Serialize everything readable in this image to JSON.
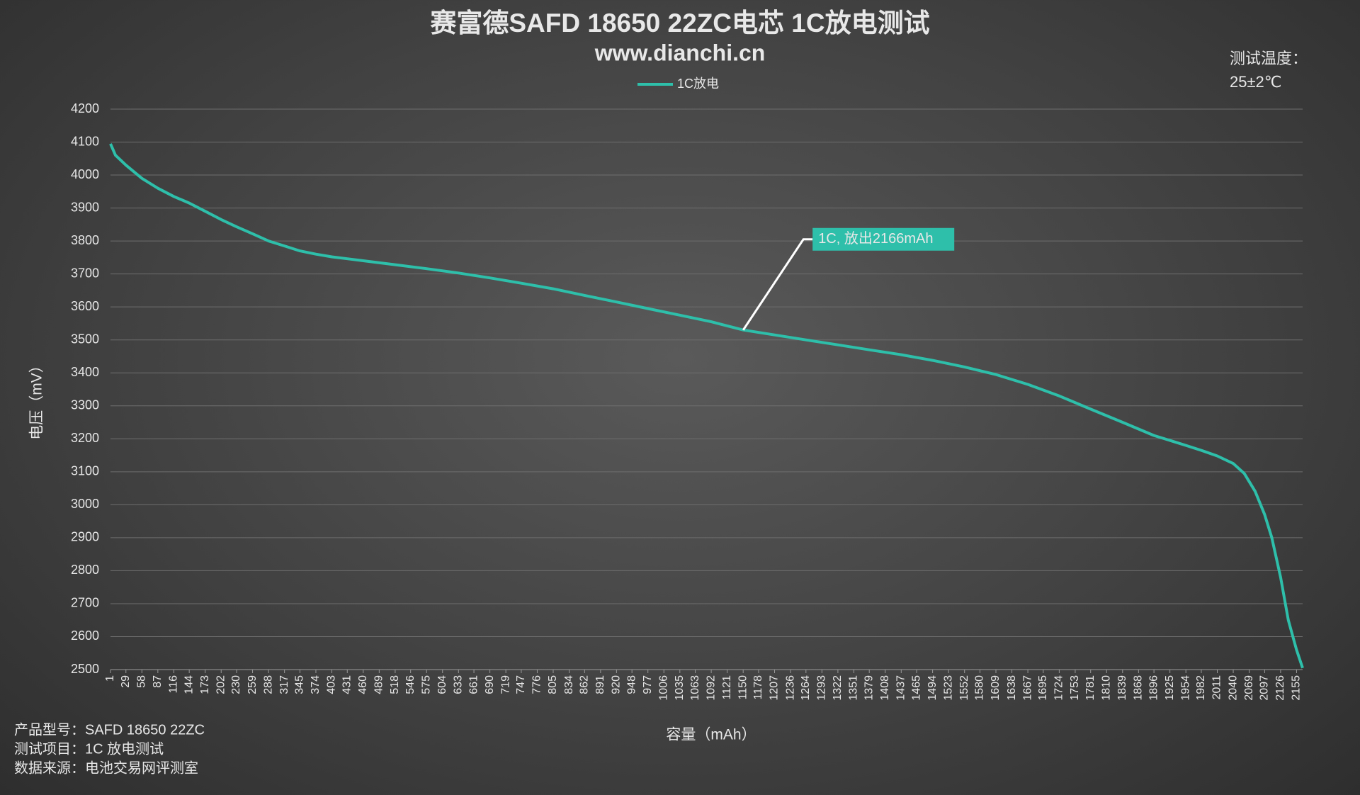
{
  "chart_data": {
    "type": "line",
    "title": "赛富德SAFD 18650 22ZC电芯 1C放电测试",
    "subtitle": "www.dianchi.cn",
    "x_label": "容量（mAh）",
    "y_label": "电压（mV）",
    "temperature_label": "测试温度：",
    "temperature_value": "25±2℃",
    "annotation": "1C, 放出2166mAh",
    "annotation_x": 1150,
    "footer": [
      "产品型号：SAFD 18650 22ZC",
      "测试项目：1C 放电测试",
      "数据来源：电池交易网评测室"
    ],
    "grid": true,
    "legend": "top",
    "x": [
      1,
      10,
      29,
      58,
      87,
      116,
      144,
      173,
      202,
      230,
      259,
      288,
      317,
      345,
      374,
      403,
      431,
      460,
      518,
      575,
      633,
      690,
      747,
      805,
      862,
      920,
      977,
      1035,
      1092,
      1150,
      1207,
      1264,
      1322,
      1379,
      1437,
      1494,
      1552,
      1609,
      1667,
      1724,
      1781,
      1839,
      1896,
      1954,
      1982,
      2011,
      2040,
      2060,
      2080,
      2097,
      2110,
      2126,
      2140,
      2155,
      2166
    ],
    "series": [
      {
        "name": "1C放电",
        "color": "#2ebfaa",
        "values": [
          4095,
          4060,
          4030,
          3990,
          3960,
          3935,
          3915,
          3890,
          3865,
          3843,
          3822,
          3800,
          3785,
          3770,
          3760,
          3752,
          3746,
          3740,
          3728,
          3716,
          3703,
          3688,
          3672,
          3655,
          3635,
          3615,
          3595,
          3575,
          3555,
          3530,
          3515,
          3500,
          3485,
          3470,
          3455,
          3438,
          3418,
          3395,
          3365,
          3330,
          3290,
          3250,
          3210,
          3180,
          3165,
          3148,
          3125,
          3095,
          3040,
          2970,
          2900,
          2780,
          2650,
          2560,
          2505
        ]
      }
    ],
    "xlim": [
      1,
      2166
    ],
    "xticks": [
      1,
      29,
      58,
      87,
      116,
      144,
      173,
      202,
      230,
      259,
      288,
      317,
      345,
      374,
      403,
      431,
      460,
      489,
      518,
      546,
      575,
      604,
      633,
      661,
      690,
      719,
      747,
      776,
      805,
      834,
      862,
      891,
      920,
      948,
      977,
      1006,
      1035,
      1063,
      1092,
      1121,
      1150,
      1178,
      1207,
      1236,
      1264,
      1293,
      1322,
      1351,
      1379,
      1408,
      1437,
      1465,
      1494,
      1523,
      1552,
      1580,
      1609,
      1638,
      1667,
      1695,
      1724,
      1753,
      1781,
      1810,
      1839,
      1868,
      1896,
      1925,
      1954,
      1982,
      2011,
      2040,
      2069,
      2097,
      2126,
      2155
    ],
    "ylim": [
      2500,
      4200
    ],
    "yticks": [
      2500,
      2600,
      2700,
      2800,
      2900,
      3000,
      3100,
      3200,
      3300,
      3400,
      3500,
      3600,
      3700,
      3800,
      3900,
      4000,
      4100,
      4200
    ]
  }
}
